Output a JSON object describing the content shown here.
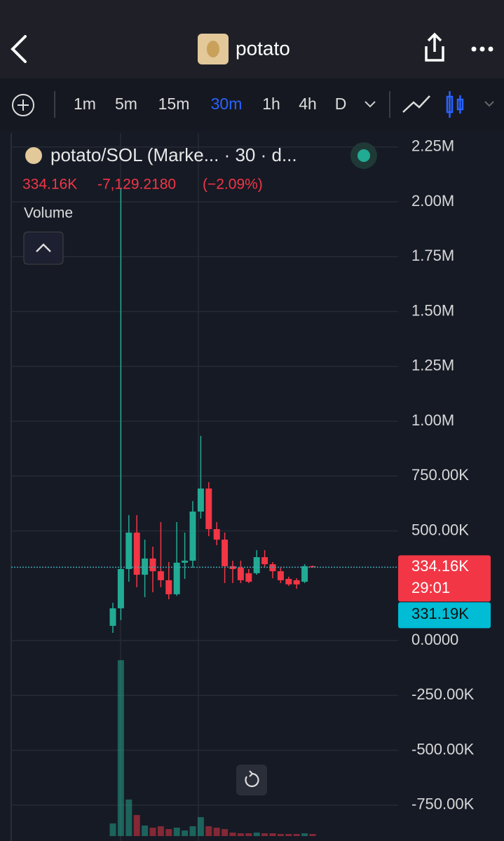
{
  "header": {
    "title": "potato"
  },
  "toolbar": {
    "intervals": [
      "1m",
      "5m",
      "15m",
      "30m",
      "1h",
      "4h",
      "D"
    ],
    "active": 3
  },
  "chart_data": {
    "type": "candlestick",
    "title": "potato/SOL (Marke... · 30 · d...",
    "last": "334.16K",
    "change": "-7,129.2180",
    "change_pct": "(−2.09%)",
    "up_color": "#22ab94",
    "down_color": "#f23645",
    "open": [
      67000,
      147000,
      326000,
      492000,
      300000,
      374000,
      316000,
      275000,
      211000,
      355000,
      364000,
      588000,
      693000,
      508000,
      460000,
      339000,
      332000,
      307000,
      307000,
      380000,
      348000,
      316000,
      281000,
      275000,
      268000,
      339000
    ],
    "close": [
      147000,
      326000,
      492000,
      300000,
      374000,
      316000,
      275000,
      211000,
      355000,
      364000,
      588000,
      693000,
      508000,
      460000,
      339000,
      326000,
      275000,
      268000,
      380000,
      348000,
      316000,
      275000,
      256000,
      256000,
      339000,
      334160
    ],
    "high": [
      172000,
      2060000,
      572000,
      572000,
      460000,
      428000,
      540000,
      358000,
      540000,
      492000,
      636000,
      933000,
      722000,
      540000,
      492000,
      364000,
      364000,
      326000,
      412000,
      412000,
      358000,
      332000,
      291000,
      284000,
      348000,
      342000
    ],
    "low": [
      35000,
      93000,
      268000,
      243000,
      198000,
      220000,
      243000,
      188000,
      204000,
      281000,
      332000,
      556000,
      476000,
      435000,
      262000,
      262000,
      262000,
      262000,
      300000,
      332000,
      284000,
      262000,
      249000,
      236000,
      262000,
      332000
    ],
    "volume": {
      "name": "Volume",
      "values": [
        18,
        250,
        52,
        30,
        15,
        12,
        14,
        10,
        12,
        8,
        14,
        27,
        14,
        12,
        10,
        5,
        4,
        4,
        5,
        4,
        4,
        3,
        3,
        3,
        4,
        3
      ]
    },
    "ylim": [
      -913800,
      2313000
    ],
    "yticks": [
      {
        "value": 2250000,
        "label": "2.25M"
      },
      {
        "value": 2000000,
        "label": "2.00M"
      },
      {
        "value": 1750000,
        "label": "1.75M"
      },
      {
        "value": 1500000,
        "label": "1.50M"
      },
      {
        "value": 1250000,
        "label": "1.25M"
      },
      {
        "value": 1000000,
        "label": "1.00M"
      },
      {
        "value": 750000,
        "label": "750.00K"
      },
      {
        "value": 500000,
        "label": "500.00K"
      },
      {
        "value": 0,
        "label": "0.0000"
      },
      {
        "value": -250000,
        "label": "-250.00K"
      },
      {
        "value": -500000,
        "label": "-500.00K"
      },
      {
        "value": -750000,
        "label": "-750.00K"
      }
    ],
    "price_line": {
      "value": 334160,
      "label": "334.16K",
      "countdown": "29:01"
    },
    "mark_price": {
      "value": 331190,
      "label": "331.19K"
    },
    "grid": true
  }
}
